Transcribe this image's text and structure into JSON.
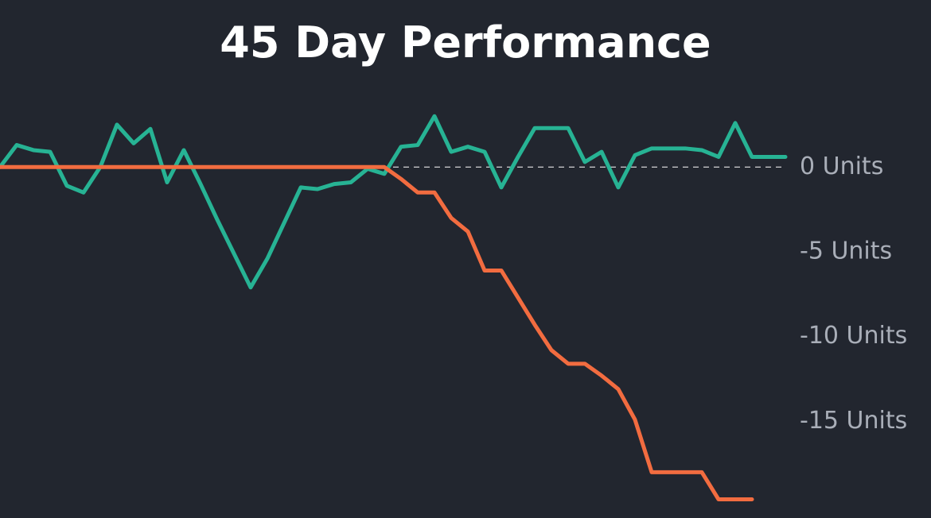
{
  "chart_data": {
    "type": "line",
    "title": "45 Day Performance",
    "x": [
      0,
      1,
      2,
      3,
      4,
      5,
      6,
      7,
      8,
      9,
      10,
      11,
      12,
      13,
      14,
      15,
      16,
      17,
      18,
      19,
      20,
      21,
      22,
      23,
      24,
      25,
      26,
      27,
      28,
      29,
      30,
      31,
      32,
      33,
      34,
      35,
      36,
      37,
      38,
      39,
      40,
      41,
      42,
      43,
      44,
      45,
      46,
      47
    ],
    "xlim": [
      0,
      47
    ],
    "ylim": [
      -20.7,
      4.7
    ],
    "yticks": [
      {
        "value": 0,
        "label": "0 Units"
      },
      {
        "value": -5,
        "label": "-5 Units"
      },
      {
        "value": -10,
        "label": "-10 Units"
      },
      {
        "value": -15,
        "label": "-15 Units"
      }
    ],
    "reference_line": 0,
    "series": [
      {
        "color": "#27b394",
        "values": [
          0,
          1.3,
          1.0,
          0.9,
          -1.1,
          -1.5,
          0,
          2.5,
          1.4,
          2.25,
          -0.9,
          1.0,
          -1.0,
          -3.1,
          -5.1,
          -7.1,
          -5.4,
          -3.3,
          -1.2,
          -1.3,
          -1.0,
          -0.9,
          -0.1,
          -0.4,
          1.2,
          1.3,
          3.0,
          0.9,
          1.2,
          0.9,
          -1.2,
          0.6,
          2.3,
          2.3,
          2.3,
          0.3,
          0.9,
          -1.2,
          0.7,
          1.1,
          1.1,
          1.1,
          1.0,
          0.6,
          2.6,
          0.6,
          0.6,
          0.6
        ]
      },
      {
        "color": "#f26c40",
        "values": [
          0,
          0,
          0,
          0,
          0,
          0,
          0,
          0,
          0,
          0,
          0,
          0,
          0,
          0,
          0,
          0,
          0,
          0,
          0,
          0,
          0,
          0,
          0,
          0,
          -0.7,
          -1.5,
          -1.5,
          -3.0,
          -3.8,
          -6.1,
          -6.1,
          -7.7,
          -9.3,
          -10.8,
          -11.6,
          -11.6,
          -12.3,
          -13.1,
          -14.9,
          -18.0,
          -18.0,
          -18.0,
          -18.0,
          -19.6,
          -19.6,
          -19.6,
          null,
          null
        ]
      }
    ]
  }
}
